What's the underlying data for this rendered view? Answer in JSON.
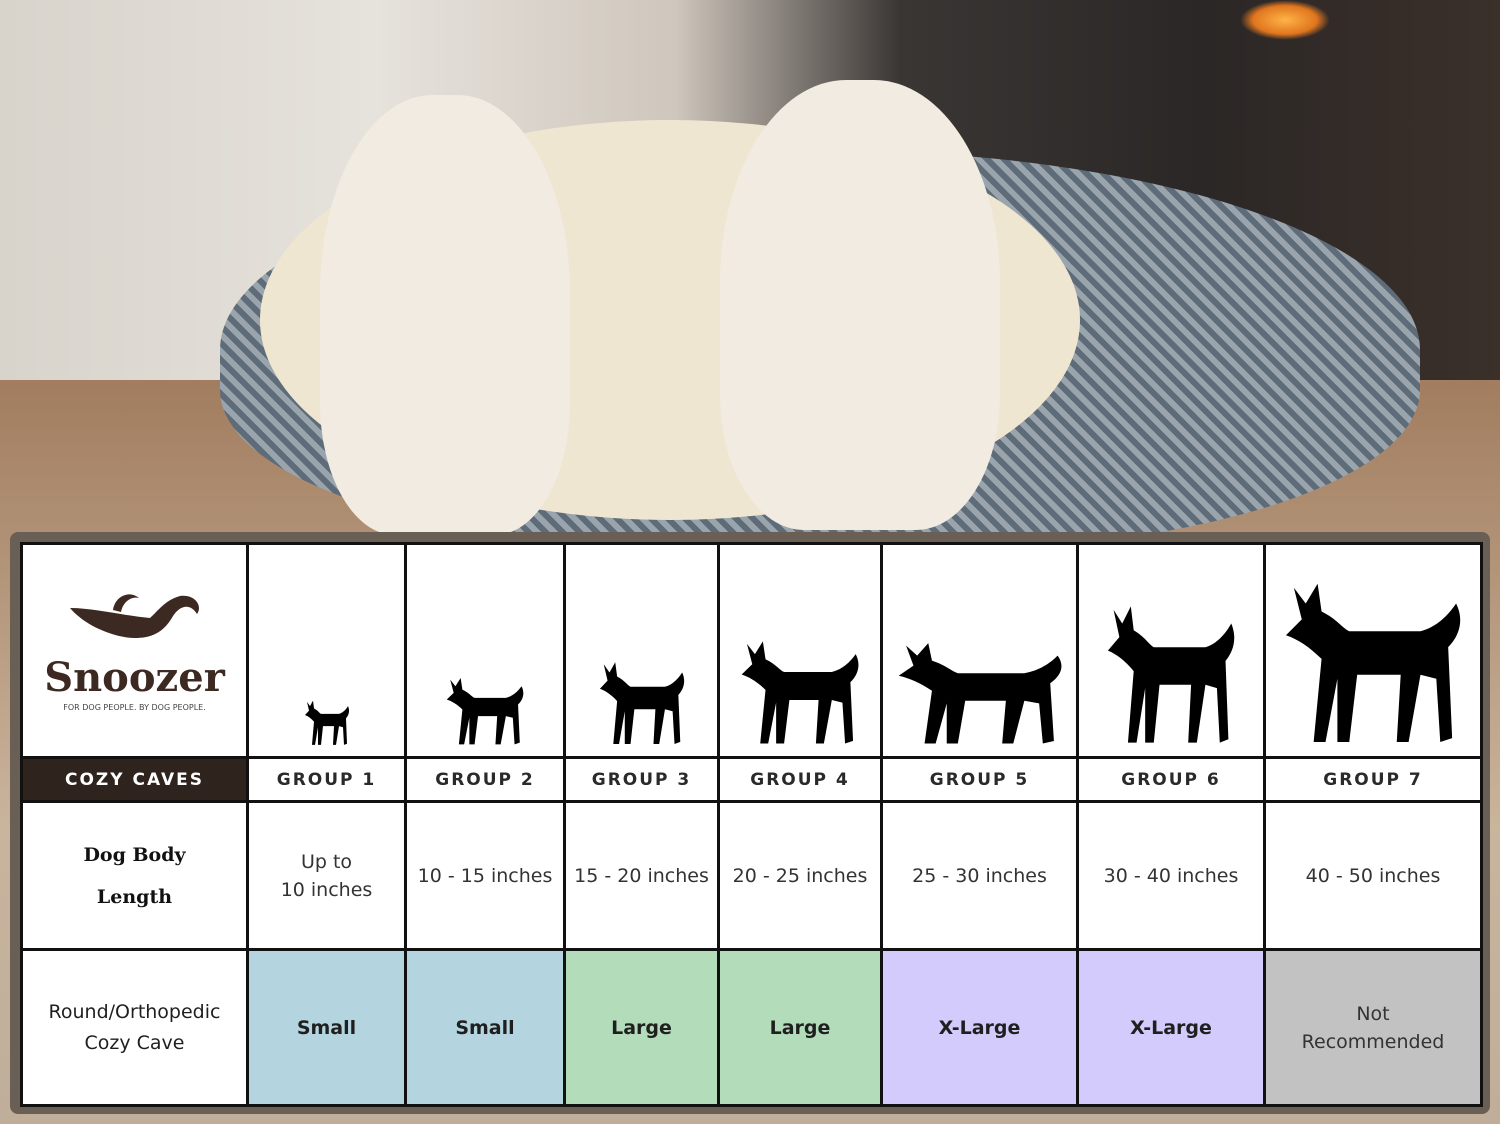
{
  "brand": {
    "name": "Snoozer",
    "tagline": "FOR DOG PEOPLE. BY DOG PEOPLE.",
    "product_line": "COZY CAVES"
  },
  "rows": {
    "length_label_1": "Dog Body",
    "length_label_2": "Length",
    "size_label_1": "Round/Orthopedic",
    "size_label_2": "Cozy Cave"
  },
  "colors": {
    "small": "#b4d5e0",
    "large": "#b2dcba",
    "xlarge": "#d3cbfb",
    "not_recommended": "#c2c2c2",
    "brand_dark": "#2e231d"
  },
  "groups": [
    {
      "name": "GROUP 1",
      "length": "Up to 10 inches",
      "length_1": "Up to",
      "length_2": "10 inches",
      "size": "Small",
      "color": "#b4d5e0",
      "icon": "chihuahua-silhouette-icon"
    },
    {
      "name": "GROUP 2",
      "length": "10 - 15 inches",
      "size": "Small",
      "color": "#b4d5e0",
      "icon": "pomeranian-silhouette-icon"
    },
    {
      "name": "GROUP 3",
      "length": "15 - 20 inches",
      "size": "Large",
      "color": "#b2dcba",
      "icon": "boston-terrier-silhouette-icon"
    },
    {
      "name": "GROUP 4",
      "length": "20 - 25 inches",
      "size": "Large",
      "color": "#b2dcba",
      "icon": "husky-silhouette-icon"
    },
    {
      "name": "GROUP 5",
      "length": "25 - 30 inches",
      "size": "X-Large",
      "color": "#d3cbfb",
      "icon": "golden-retriever-silhouette-icon"
    },
    {
      "name": "GROUP 6",
      "length": "30 - 40 inches",
      "size": "X-Large",
      "color": "#d3cbfb",
      "icon": "doberman-silhouette-icon"
    },
    {
      "name": "GROUP 7",
      "length": "40 - 50 inches",
      "size": "Not Recommended",
      "size_1": "Not",
      "size_2": "Recommended",
      "color": "#c2c2c2",
      "icon": "great-dane-silhouette-icon"
    }
  ]
}
